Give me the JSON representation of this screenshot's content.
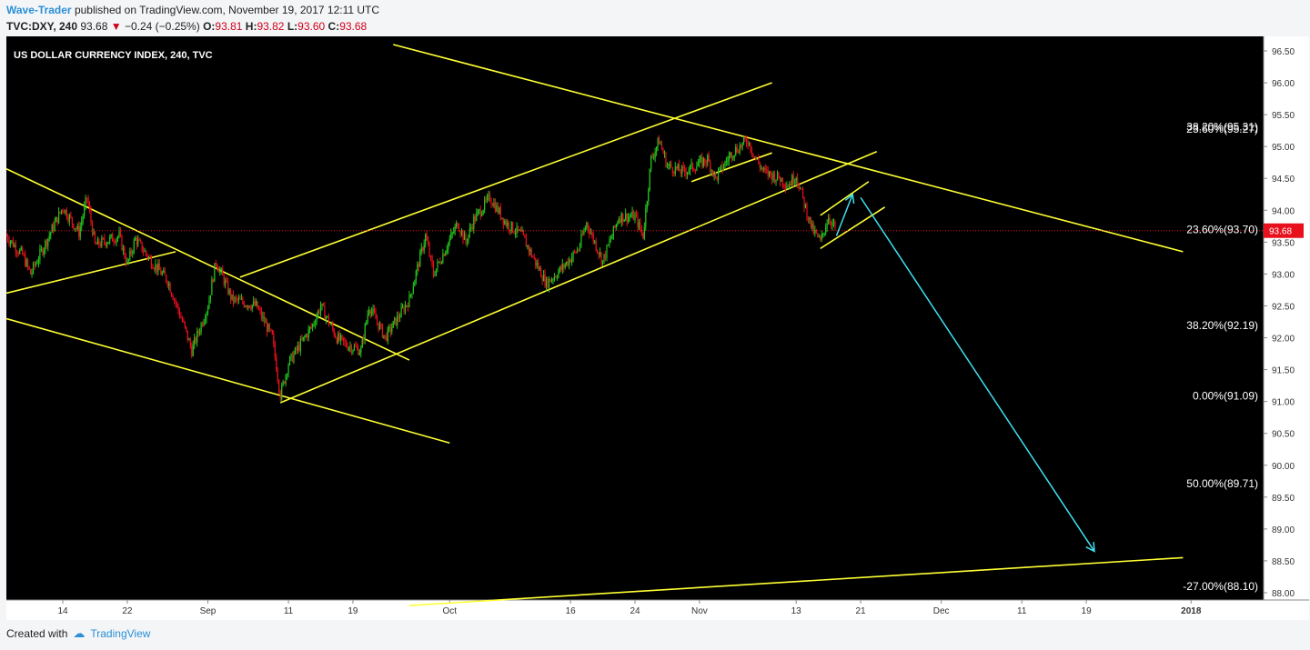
{
  "header": {
    "author": "Wave-Trader",
    "published_text": "published on TradingView.com, November 19, 2017 12:11 UTC",
    "symbol": "TVC:DXY, 240",
    "last": "93.68",
    "change": "−0.24 (−0.25%)",
    "o_label": "O:",
    "o_val": "93.81",
    "h_label": "H:",
    "h_val": "93.82",
    "l_label": "L:",
    "l_val": "93.60",
    "c_label": "C:",
    "c_val": "93.68"
  },
  "footer": {
    "created_with": "Created with",
    "brand": "TradingView"
  },
  "colors": {
    "up": "#22c51e",
    "down": "#e8101d",
    "trend": "#ffff33",
    "projection": "#3fe0f0",
    "axis_bg": "#ffffff",
    "plot_bg": "#000000",
    "price_tag": "#e8101d",
    "price_line": "#e8101d"
  },
  "chart_data": {
    "type": "candlestick",
    "title": "US DOLLAR CURRENCY INDEX, 240, TVC",
    "ylim": [
      88.0,
      96.6
    ],
    "y_ticks": [
      "96.50",
      "96.00",
      "95.50",
      "95.00",
      "94.50",
      "94.00",
      "93.50",
      "93.00",
      "92.50",
      "92.00",
      "91.50",
      "91.00",
      "90.50",
      "90.00",
      "89.50",
      "89.00",
      "88.50",
      "88.00"
    ],
    "x_ticks": [
      "14",
      "22",
      "Sep",
      "11",
      "19",
      "Oct",
      "16",
      "24",
      "Nov",
      "13",
      "21",
      "Dec",
      "11",
      "19",
      "2018"
    ],
    "last_price": "93.68",
    "close_path": [
      {
        "x": "Aug 7",
        "y": 93.6
      },
      {
        "x": "Aug 9",
        "y": 93.3
      },
      {
        "x": "Aug 10",
        "y": 93.0
      },
      {
        "x": "Aug 14",
        "y": 94.05
      },
      {
        "x": "Aug 16",
        "y": 93.65
      },
      {
        "x": "Aug 17",
        "y": 94.2
      },
      {
        "x": "Aug 18",
        "y": 93.45
      },
      {
        "x": "Aug 21",
        "y": 93.6
      },
      {
        "x": "Aug 22",
        "y": 93.15
      },
      {
        "x": "Aug 23",
        "y": 93.55
      },
      {
        "x": "Aug 25",
        "y": 93.2
      },
      {
        "x": "Aug 27",
        "y": 92.9
      },
      {
        "x": "Aug 29",
        "y": 92.2
      },
      {
        "x": "Aug 30",
        "y": 91.8
      },
      {
        "x": "Sep 1",
        "y": 92.5
      },
      {
        "x": "Sep 2",
        "y": 93.2
      },
      {
        "x": "Sep 4",
        "y": 92.6
      },
      {
        "x": "Sep 7",
        "y": 92.5
      },
      {
        "x": "Sep 9",
        "y": 92.0
      },
      {
        "x": "Sep 10",
        "y": 91.1
      },
      {
        "x": "Sep 11",
        "y": 91.6
      },
      {
        "x": "Sep 12",
        "y": 91.8
      },
      {
        "x": "Sep 14",
        "y": 92.2
      },
      {
        "x": "Sep 15",
        "y": 92.5
      },
      {
        "x": "Sep 17",
        "y": 92.0
      },
      {
        "x": "Sep 18",
        "y": 91.9
      },
      {
        "x": "Sep 20",
        "y": 91.8
      },
      {
        "x": "Sep 21",
        "y": 92.5
      },
      {
        "x": "Sep 23",
        "y": 92.0
      },
      {
        "x": "Sep 24",
        "y": 92.2
      },
      {
        "x": "Sep 26",
        "y": 92.6
      },
      {
        "x": "Sep 28",
        "y": 93.6
      },
      {
        "x": "Sep 29",
        "y": 93.0
      },
      {
        "x": "Oct 2",
        "y": 93.8
      },
      {
        "x": "Oct 3",
        "y": 93.5
      },
      {
        "x": "Oct 4",
        "y": 93.85
      },
      {
        "x": "Oct 6",
        "y": 94.2
      },
      {
        "x": "Oct 8",
        "y": 93.8
      },
      {
        "x": "Oct 10",
        "y": 93.6
      },
      {
        "x": "Oct 12",
        "y": 93.1
      },
      {
        "x": "Oct 13",
        "y": 92.85
      },
      {
        "x": "Oct 15",
        "y": 93.1
      },
      {
        "x": "Oct 17",
        "y": 93.4
      },
      {
        "x": "Oct 18",
        "y": 93.8
      },
      {
        "x": "Oct 20",
        "y": 93.2
      },
      {
        "x": "Oct 22",
        "y": 93.9
      },
      {
        "x": "Oct 24",
        "y": 93.9
      },
      {
        "x": "Oct 25",
        "y": 93.6
      },
      {
        "x": "Oct 26",
        "y": 94.8
      },
      {
        "x": "Oct 27",
        "y": 95.1
      },
      {
        "x": "Oct 28",
        "y": 94.7
      },
      {
        "x": "Oct 30",
        "y": 94.6
      },
      {
        "x": "Nov 2",
        "y": 94.8
      },
      {
        "x": "Nov 3",
        "y": 94.5
      },
      {
        "x": "Nov 5",
        "y": 94.9
      },
      {
        "x": "Nov 7",
        "y": 95.1
      },
      {
        "x": "Nov 8",
        "y": 94.8
      },
      {
        "x": "Nov 9",
        "y": 94.6
      },
      {
        "x": "Nov 11",
        "y": 94.5
      },
      {
        "x": "Nov 12",
        "y": 94.4
      },
      {
        "x": "Nov 13",
        "y": 94.55
      },
      {
        "x": "Nov 14",
        "y": 94.1
      },
      {
        "x": "Nov 15",
        "y": 93.7
      },
      {
        "x": "Nov 16",
        "y": 93.5
      },
      {
        "x": "Nov 17",
        "y": 93.9
      },
      {
        "x": "Nov 18",
        "y": 93.68
      }
    ],
    "fib_levels": [
      {
        "label": "38.20%(95.31)",
        "value": 95.31
      },
      {
        "label": "23.60%(95.27)",
        "value": 95.27
      },
      {
        "label": "23.60%(93.70)",
        "value": 93.7
      },
      {
        "label": "38.20%(92.19)",
        "value": 92.19
      },
      {
        "label": "0.00%(91.09)",
        "value": 91.09
      },
      {
        "label": "50.00%(89.71)",
        "value": 89.71
      },
      {
        "label": "-27.00%(88.10)",
        "value": 88.1
      }
    ],
    "trendlines": [
      {
        "x1": "Aug 7",
        "y1": 94.65,
        "x2": "Sep 26",
        "y2": 91.65
      },
      {
        "x1": "Aug 7",
        "y1": 92.3,
        "x2": "Oct 1",
        "y2": 90.35
      },
      {
        "x1": "Aug 7",
        "y1": 92.7,
        "x2": "Aug 28",
        "y2": 93.35
      },
      {
        "x1": "Sep 10",
        "y1": 90.98,
        "x2": "Nov 23",
        "y2": 94.92
      },
      {
        "x1": "Sep 5",
        "y1": 92.95,
        "x2": "Nov 10",
        "y2": 96.0
      },
      {
        "x1": "Sep 24",
        "y1": 96.6,
        "x2": "Dec 31",
        "y2": 93.35
      },
      {
        "x1": "Oct 31",
        "y1": 94.45,
        "x2": "Nov 10",
        "y2": 94.9
      },
      {
        "x1": "Nov 16",
        "y1": 93.4,
        "x2": "Nov 24",
        "y2": 94.05
      },
      {
        "x1": "Nov 16",
        "y1": 93.92,
        "x2": "Nov 22",
        "y2": 94.45
      },
      {
        "x1": "Sep 26",
        "y1": 87.8,
        "x2": "Dec 31",
        "y2": 88.55
      }
    ],
    "projections": [
      {
        "x1": "Nov 18",
        "y1": 93.6,
        "x2": "Nov 20",
        "y2": 94.25
      },
      {
        "x1": "Nov 21",
        "y1": 94.2,
        "x2": "Dec 20",
        "y2": 88.65
      }
    ]
  }
}
